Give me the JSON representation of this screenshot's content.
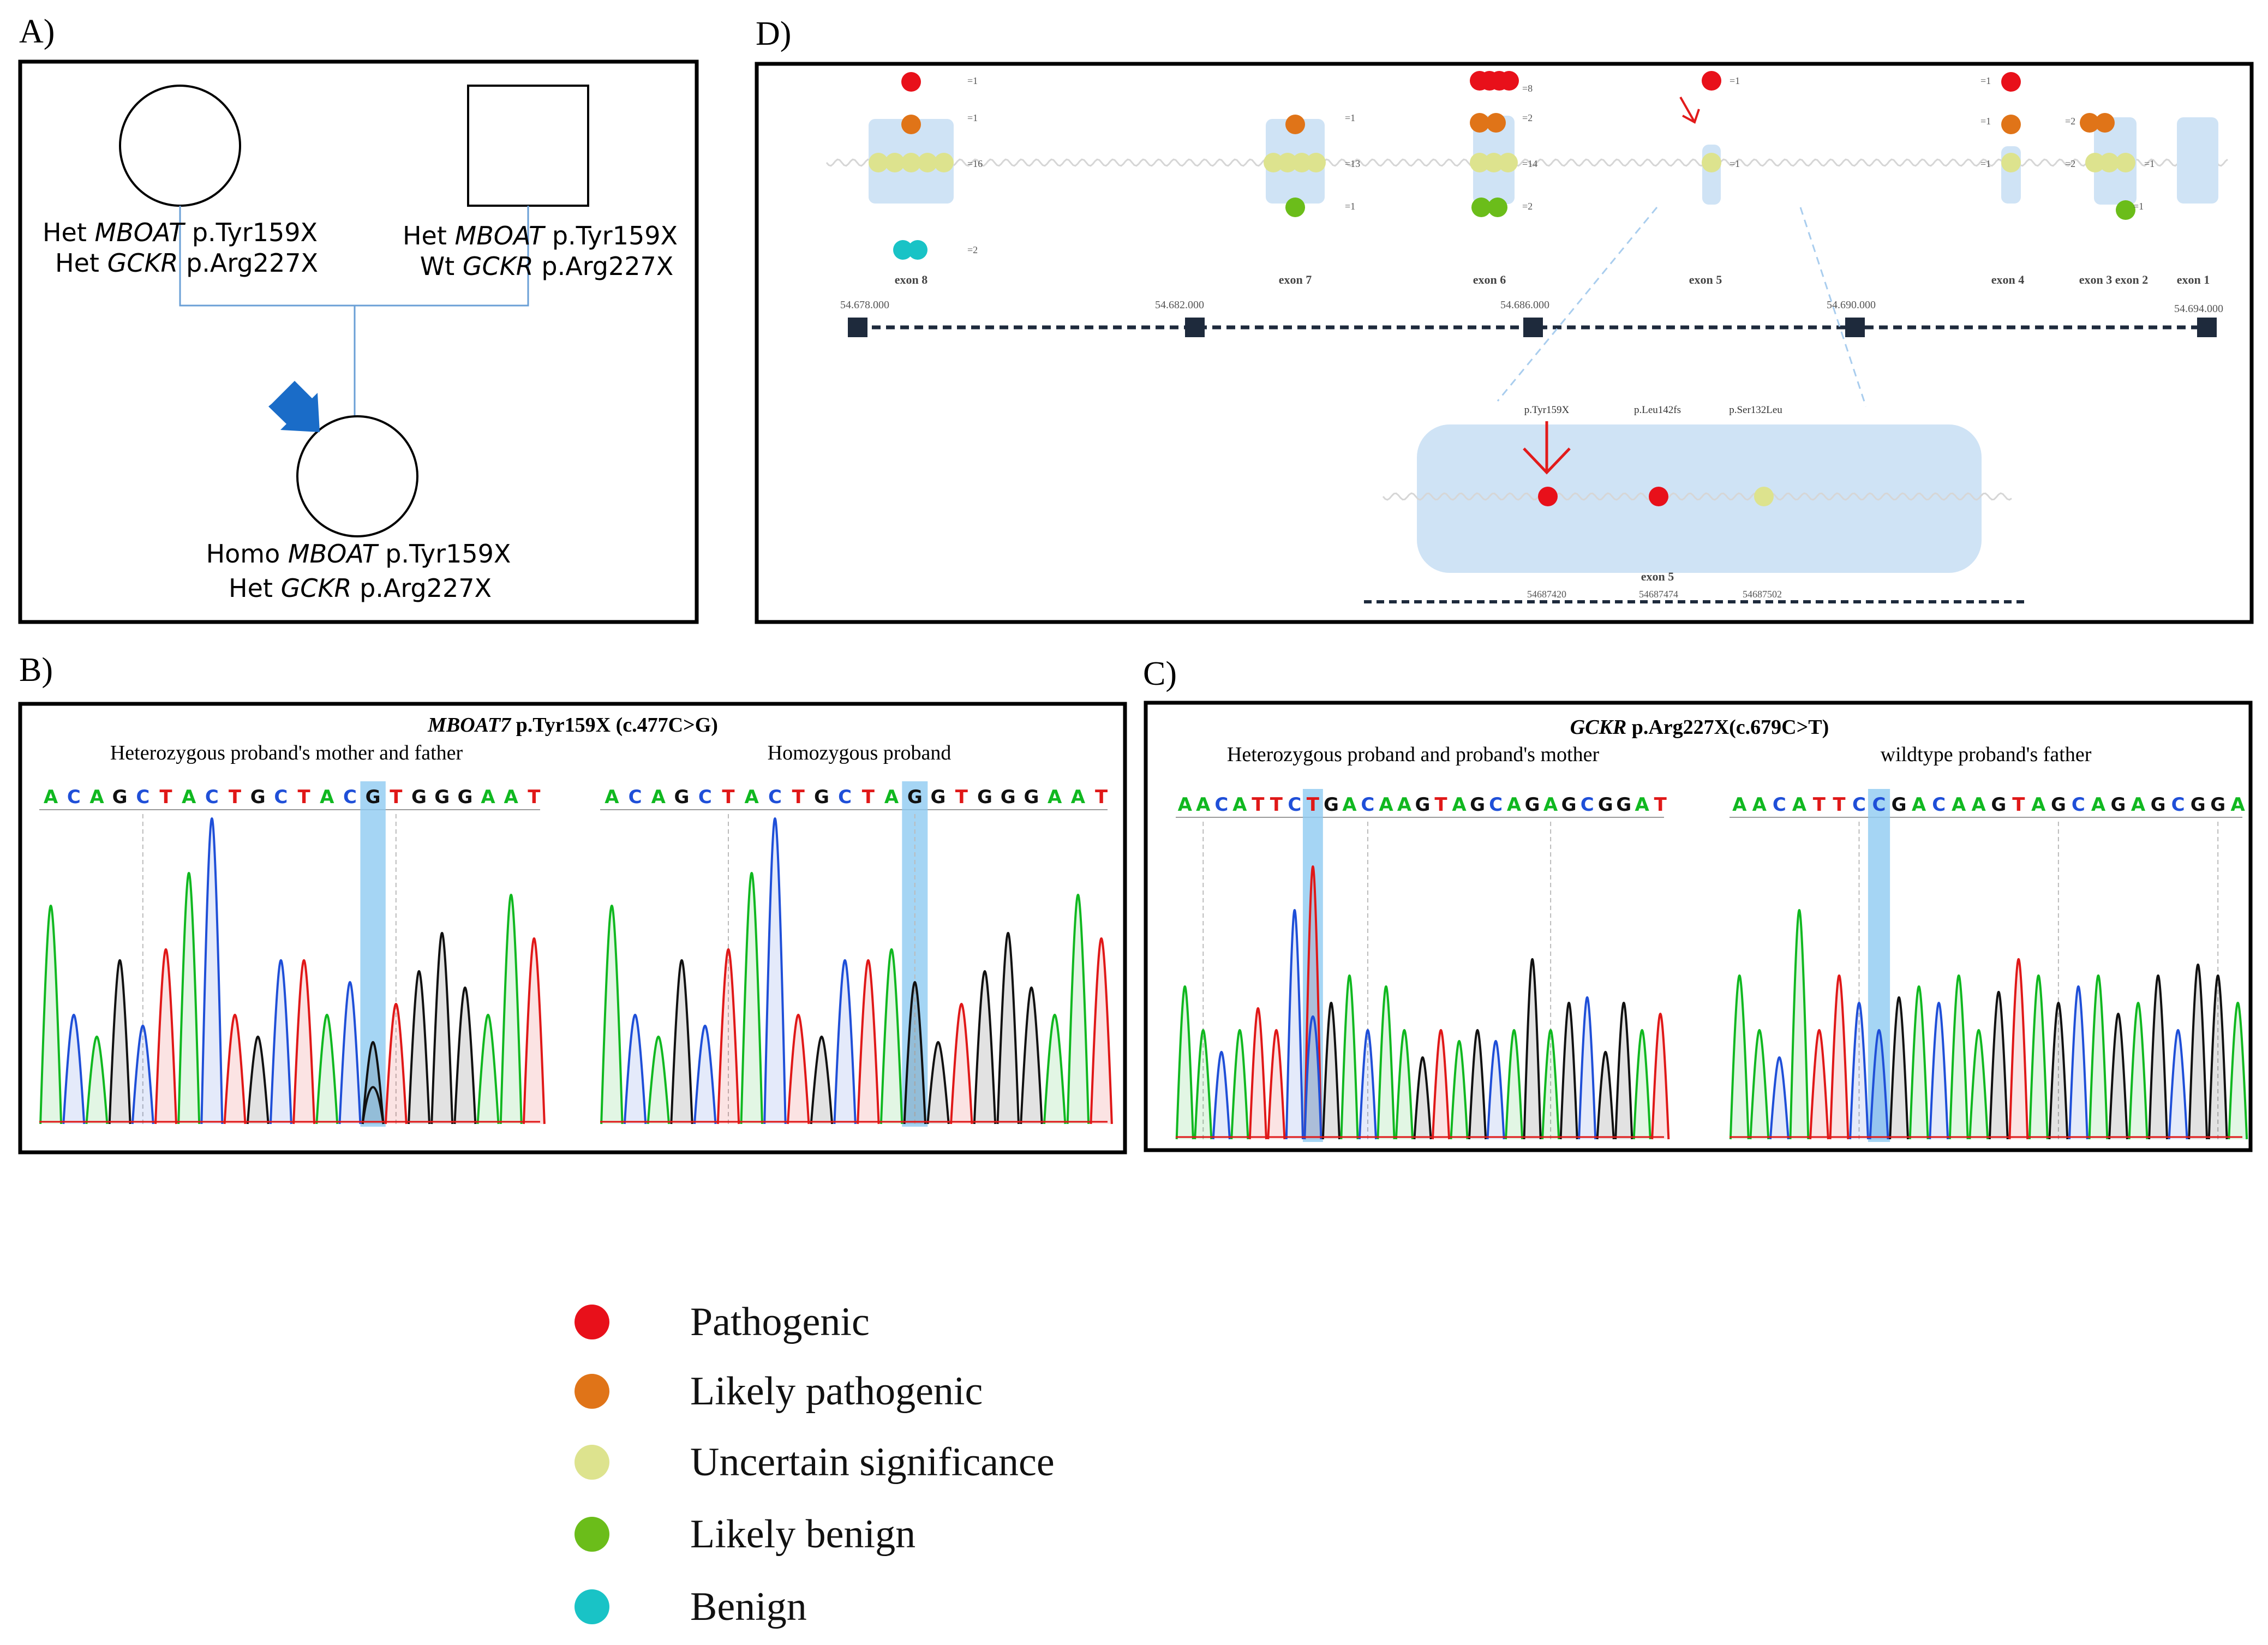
{
  "panels": {
    "A": {
      "label": "A)"
    },
    "B": {
      "label": "B)"
    },
    "C": {
      "label": "C)"
    },
    "D": {
      "label": "D)"
    }
  },
  "pedigree": {
    "mother": {
      "line1_pre": "Het ",
      "line1_gene": "MBOAT",
      "line1_post": " p.Tyr159X",
      "line2_pre": "Het ",
      "line2_gene": "GCKR",
      "line2_post": " p.Arg227X"
    },
    "father": {
      "line1_pre": "Het ",
      "line1_gene": "MBOAT",
      "line1_post": " p.Tyr159X",
      "line2_pre": "Wt ",
      "line2_gene": "GCKR",
      "line2_post": " p.Arg227X"
    },
    "proband": {
      "line1_pre": "Homo ",
      "line1_gene": "MBOAT",
      "line1_post": " p.Tyr159X",
      "line2_pre": "Het ",
      "line2_gene": "GCKR",
      "line2_post": " p.Arg227X"
    }
  },
  "panel_b": {
    "title_gene": "MBOAT7",
    "title_rest": " p.Tyr159X (c.477C>G)",
    "left_caption": "Heterozygous proband's mother and father",
    "right_caption": "Homozygous proband",
    "left_seq": "ACAGCTACTGCTACGTGGGAAT",
    "right_seq": "ACAGCTACTGCTAGGTGGGAAT"
  },
  "panel_c": {
    "title_gene": "GCKR",
    "title_rest": " p.Arg227X(c.679C>T)",
    "left_caption": "Heterozygous proband and proband's mother",
    "right_caption": "wildtype proband's father",
    "left_seq": "AACATTCTGACAAGTAGCAGAGCGGAT",
    "right_seq": "AACATTCCGACAAGTAGCAGAGCGGA"
  },
  "panel_d": {
    "exons": [
      {
        "name": "exon 8",
        "counts": [
          "=1",
          "=1",
          "=16",
          "=2"
        ]
      },
      {
        "name": "exon 7",
        "counts": [
          "=1",
          "=13",
          "=1"
        ]
      },
      {
        "name": "exon 6",
        "counts": [
          "=8",
          "=2",
          "=14",
          "=2"
        ]
      },
      {
        "name": "exon 5",
        "counts": [
          "=1",
          "=1"
        ]
      },
      {
        "name": "exon 4",
        "counts": [
          "=1",
          "=1",
          "=1"
        ]
      },
      {
        "name": "exon 3 exon 2",
        "counts": [
          "=2",
          "=2",
          "=1"
        ]
      },
      {
        "name": "exon 1",
        "counts": [
          "=1"
        ]
      }
    ],
    "coords": [
      "54.678.000",
      "54.682.000",
      "54.686.000",
      "54.690.000",
      "54.694.000"
    ],
    "zoom": {
      "variants": [
        "p.Tyr159X",
        "p.Leu142fs",
        "p.Ser132Leu"
      ],
      "exon_label": "exon 5",
      "positions": [
        "54687420",
        "54687474",
        "54687502"
      ]
    }
  },
  "legend": [
    {
      "label": "Pathogenic",
      "color": "#e8101a"
    },
    {
      "label": "Likely pathogenic",
      "color": "#e07418"
    },
    {
      "label": "Uncertain significance",
      "color": "#dde38e"
    },
    {
      "label": "Likely benign",
      "color": "#6bbd1a"
    },
    {
      "label": "Benign",
      "color": "#19c3c6"
    }
  ],
  "colors": {
    "exon_fill": "#cfe3f5",
    "highlight": "#8ecbf1",
    "base_A": "#10b820",
    "base_C": "#1f4fd8",
    "base_G": "#111111",
    "base_T": "#e01818",
    "dark": "#1e2a3c"
  }
}
